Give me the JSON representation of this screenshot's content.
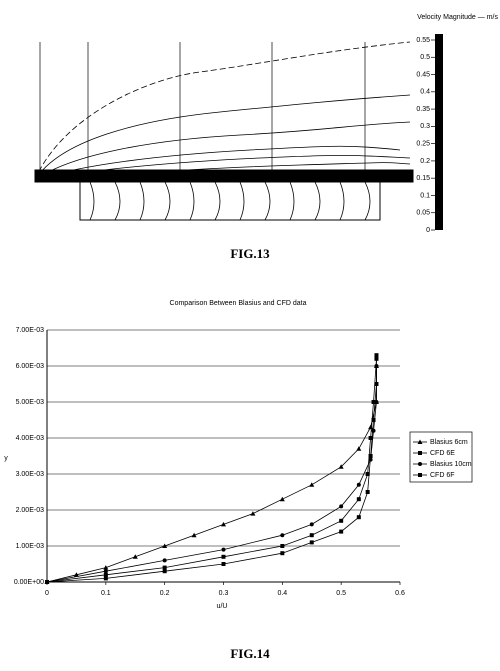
{
  "fig13": {
    "colorbar_title": "Velocity Magnitude — m/s",
    "colorbar_lim": [
      0,
      0.55
    ],
    "colorbar_ticks": [
      0.55,
      0.5,
      0.45,
      0.4,
      0.35,
      0.3,
      0.25,
      0.2,
      0.15,
      0.1,
      0.05,
      0
    ],
    "caption": "FIG.13"
  },
  "chart_data": {
    "type": "line",
    "title": "Comparison Between Blasius and CFD data",
    "x_label": "u/U",
    "y_label": "y",
    "xlim": [
      0,
      0.6
    ],
    "xticks": [
      0,
      0.1,
      0.2,
      0.3,
      0.4,
      0.5,
      0.6
    ],
    "ylim": [
      0,
      0.007
    ],
    "yticks": [
      {
        "value": 0,
        "label": "0.00E+00"
      },
      {
        "value": 0.001,
        "label": "1.00E-03"
      },
      {
        "value": 0.002,
        "label": "2.00E-03"
      },
      {
        "value": 0.003,
        "label": "3.00E-03"
      },
      {
        "value": 0.004,
        "label": "4.00E-03"
      },
      {
        "value": 0.005,
        "label": "5.00E-03"
      },
      {
        "value": 0.006,
        "label": "6.00E-03"
      },
      {
        "value": 0.007,
        "label": "7.00E-03"
      }
    ],
    "grid": true,
    "legend": "right",
    "series": [
      {
        "name": "Blasius 6cm",
        "color": "#000",
        "marker": "triangle",
        "x": [
          0,
          0.05,
          0.1,
          0.15,
          0.2,
          0.25,
          0.3,
          0.35,
          0.4,
          0.45,
          0.5,
          0.53,
          0.55,
          0.56,
          0.56
        ],
        "values": [
          0,
          0.0002,
          0.0004,
          0.0007,
          0.001,
          0.0013,
          0.0016,
          0.0019,
          0.0023,
          0.0027,
          0.0032,
          0.0037,
          0.0043,
          0.005,
          0.006
        ]
      },
      {
        "name": "CFD 6E",
        "color": "#000",
        "marker": "square",
        "x": [
          0,
          0.1,
          0.2,
          0.3,
          0.4,
          0.45,
          0.5,
          0.53,
          0.545,
          0.55,
          0.555,
          0.56,
          0.56
        ],
        "values": [
          0,
          0.0001,
          0.0003,
          0.0005,
          0.0008,
          0.0011,
          0.0014,
          0.0018,
          0.0025,
          0.0035,
          0.0045,
          0.0055,
          0.0063
        ]
      },
      {
        "name": "Blasius 10cm",
        "color": "#000",
        "marker": "circle",
        "x": [
          0,
          0.1,
          0.2,
          0.3,
          0.4,
          0.45,
          0.5,
          0.53,
          0.55,
          0.555,
          0.56,
          0.56
        ],
        "values": [
          0,
          0.0003,
          0.0006,
          0.0009,
          0.0013,
          0.0016,
          0.0021,
          0.0027,
          0.0034,
          0.0042,
          0.005,
          0.006
        ]
      },
      {
        "name": "CFD 6F",
        "color": "#000",
        "marker": "square",
        "x": [
          0,
          0.1,
          0.2,
          0.3,
          0.4,
          0.45,
          0.5,
          0.53,
          0.545,
          0.55,
          0.555,
          0.56
        ],
        "values": [
          0,
          0.0002,
          0.0004,
          0.0007,
          0.001,
          0.0013,
          0.0017,
          0.0023,
          0.003,
          0.004,
          0.005,
          0.0062
        ]
      }
    ]
  },
  "fig14_caption": "FIG.14"
}
